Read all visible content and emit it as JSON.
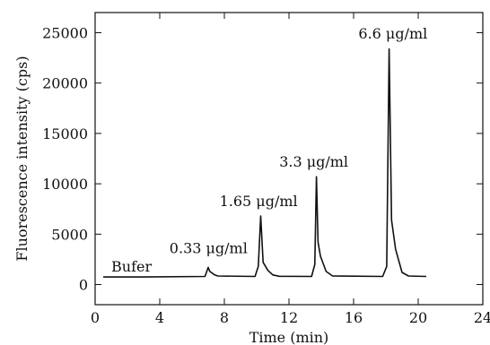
{
  "chart_data": {
    "type": "line",
    "xlabel": "Time (min)",
    "ylabel": "Fluorescence intensity (cps)",
    "xlim": [
      0,
      24
    ],
    "ylim": [
      -2000,
      27000
    ],
    "xticks": [
      0,
      4,
      8,
      12,
      16,
      20,
      24
    ],
    "yticks": [
      0,
      5000,
      10000,
      15000,
      20000,
      25000
    ],
    "grid": false,
    "legend": "none",
    "line_color": "#111111",
    "series": [
      {
        "x": [
          0.5,
          3,
          6.8,
          7.0,
          7.1,
          7.4,
          7.6,
          9.9,
          10.1,
          10.25,
          10.4,
          10.7,
          11.0,
          11.4,
          13.4,
          13.6,
          13.7,
          13.8,
          13.95,
          14.3,
          14.7,
          17.8,
          18.05,
          18.2,
          18.35,
          18.6,
          19.0,
          19.4,
          20.5
        ],
        "y": [
          750,
          750,
          800,
          1700,
          1300,
          950,
          850,
          800,
          1800,
          6800,
          2200,
          1400,
          950,
          820,
          800,
          2000,
          10700,
          4200,
          2800,
          1300,
          850,
          800,
          1800,
          23400,
          6400,
          3500,
          1200,
          850,
          800
        ]
      }
    ],
    "annotations": [
      {
        "text": "Bufer",
        "x": 1.0,
        "y": 1300
      },
      {
        "text": "0.33 μg/ml",
        "x": 4.6,
        "y": 3100
      },
      {
        "text": "1.65 μg/ml",
        "x": 7.7,
        "y": 7800
      },
      {
        "text": "3.3 μg/ml",
        "x": 11.4,
        "y": 11700
      },
      {
        "text": "6.6 μg/ml",
        "x": 16.3,
        "y": 24400
      }
    ]
  }
}
